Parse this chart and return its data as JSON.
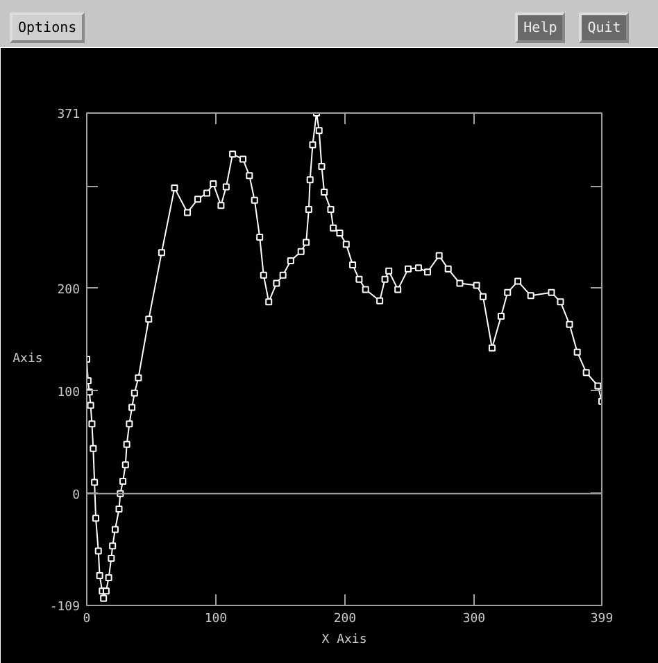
{
  "chart_data": {
    "type": "line",
    "xlabel": "X Axis",
    "ylabel": "Axis",
    "annotations": [
      "Options",
      "Help",
      "Quit"
    ],
    "series": [
      {
        "color": "#ffffff",
        "x": [
          0,
          1,
          2,
          3,
          4,
          5,
          6,
          7,
          9,
          10,
          12,
          13,
          15,
          17,
          19,
          20,
          22,
          25,
          26,
          28,
          30,
          31,
          33,
          35,
          37,
          40,
          48,
          58,
          68,
          78,
          86,
          93,
          98,
          104,
          108,
          113,
          121,
          126,
          130,
          134,
          137,
          141,
          147,
          152,
          158,
          166,
          170,
          172,
          173,
          175,
          178,
          180,
          182,
          184,
          189,
          191,
          196,
          201,
          206,
          211,
          216,
          227,
          231,
          234,
          241,
          249,
          257,
          264,
          273,
          280,
          289,
          302,
          307,
          314,
          321,
          326,
          334,
          344,
          360,
          367,
          374,
          380,
          387,
          396,
          399
        ],
        "values": [
          131,
          110,
          99,
          86,
          68,
          44,
          11,
          -24,
          -56,
          -80,
          -95,
          -102,
          -95,
          -82,
          -63,
          -51,
          -35,
          -15,
          0,
          12,
          28,
          48,
          68,
          84,
          98,
          113,
          170,
          235,
          298,
          274,
          287,
          293,
          302,
          281,
          299,
          331,
          326,
          310,
          286,
          250,
          213,
          187,
          205,
          213,
          227,
          236,
          245,
          277,
          306,
          340,
          371,
          354,
          319,
          294,
          277,
          259,
          254,
          243,
          223,
          209,
          199,
          188,
          209,
          217,
          199,
          219,
          220,
          216,
          232,
          219,
          205,
          203,
          192,
          142,
          173,
          196,
          207,
          193,
          196,
          187,
          165,
          138,
          118,
          105,
          90
        ]
      }
    ],
    "xlim": [
      0,
      399
    ],
    "ylim": [
      -109,
      371
    ],
    "xticks": [
      0,
      100,
      200,
      300,
      399
    ],
    "yticks": [
      {
        "value": -109,
        "label": "-109"
      },
      0,
      100,
      200,
      {
        "value": 300,
        "label": null
      },
      371
    ],
    "ref_lines": [
      {
        "axis": "y",
        "value": 0,
        "color": "#a0a0a0"
      }
    ],
    "marker": "square",
    "line_style": "solid",
    "grid": false
  }
}
